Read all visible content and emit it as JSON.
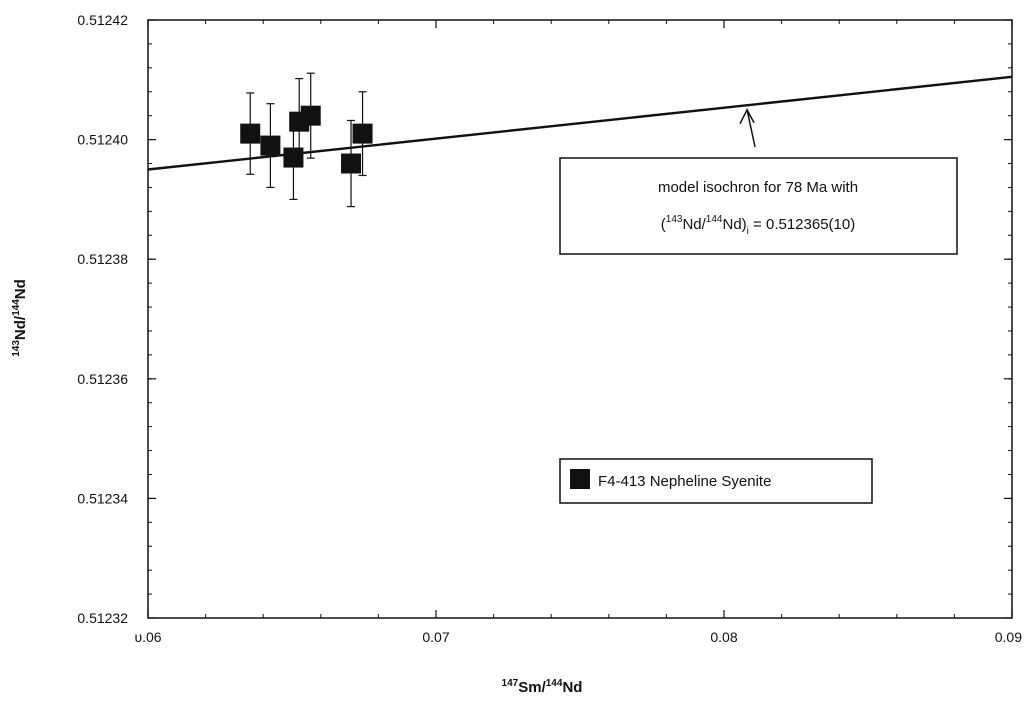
{
  "chart_data": {
    "type": "scatter",
    "x_label": {
      "pre_sup": "147",
      "a": "Sm/",
      "mid_sup": "144",
      "b": "Nd"
    },
    "y_label": {
      "pre_sup": "143",
      "a": "Nd/",
      "mid_sup": "144",
      "b": "Nd"
    },
    "xlim": [
      0.06,
      0.09
    ],
    "ylim": [
      0.51232,
      0.51242
    ],
    "x_ticks": [
      0.06,
      0.07,
      0.08,
      0.09
    ],
    "x_tick_labels": [
      "υ.06",
      "0.07",
      "0.08",
      "0.09"
    ],
    "y_ticks": [
      0.51232,
      0.51234,
      0.51236,
      0.51238,
      0.5124,
      0.51242
    ],
    "y_tick_labels": [
      "0.51232",
      "0.51234",
      "0.51236",
      "0.51238",
      "0.51240",
      "0.51242"
    ],
    "grid": false,
    "series": [
      {
        "name": "F4-413 Nepheline Syenite",
        "marker": "filled-square",
        "color": "#111111",
        "points": [
          {
            "x": 0.06355,
            "y": 0.512401,
            "err": 6.8e-06
          },
          {
            "x": 0.06425,
            "y": 0.512399,
            "err": 7e-06
          },
          {
            "x": 0.06505,
            "y": 0.512397,
            "err": 7e-06
          },
          {
            "x": 0.06525,
            "y": 0.512403,
            "err": 7.2e-06
          },
          {
            "x": 0.06565,
            "y": 0.512404,
            "err": 7.1e-06
          },
          {
            "x": 0.06705,
            "y": 0.512396,
            "err": 7.2e-06
          },
          {
            "x": 0.06745,
            "y": 0.512401,
            "err": 7e-06
          }
        ]
      }
    ],
    "reference_line": {
      "x": [
        0.06,
        0.09
      ],
      "y": [
        0.512395,
        0.5124105
      ]
    },
    "annotation": {
      "line1": "model isochron for 78 Ma with",
      "line2_open": "(",
      "line2_sup1": "143",
      "line2_a": "Nd/",
      "line2_sup2": "144",
      "line2_b": "Nd)",
      "line2_sub": "i",
      "line2_value": " = 0.512365(10)",
      "arrow_target": {
        "x": 0.0808,
        "y": 0.5124055
      }
    },
    "legend": {
      "label": "F4-413 Nepheline Syenite",
      "placement": "lower-right"
    }
  }
}
